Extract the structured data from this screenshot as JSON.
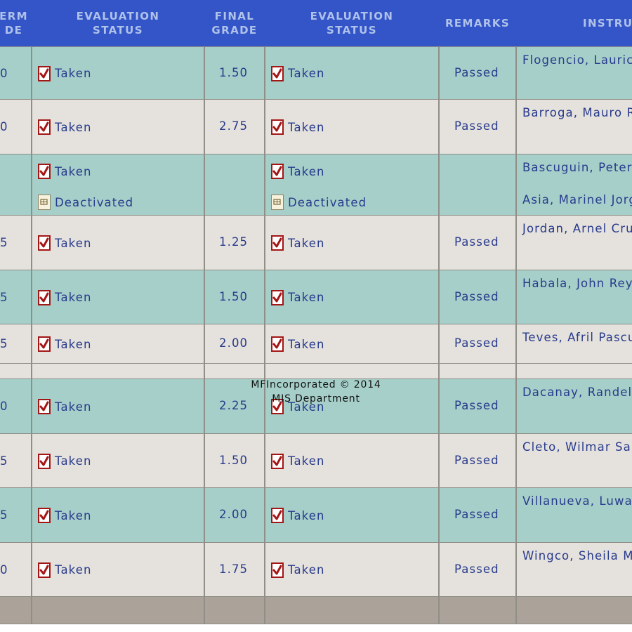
{
  "header": {
    "midterm_grade": "ERM\nDE",
    "evaluation_status_1": "EVALUATION\nSTATUS",
    "final_grade": "FINAL\nGRADE",
    "evaluation_status_2": "EVALUATION\nSTATUS",
    "remarks": "REMARKS",
    "instructor": "INSTRU"
  },
  "colors": {
    "header_bg": "#3355c8",
    "header_text": "#b0c2ea",
    "row_teal": "#a6cfc9",
    "row_gray": "#e5e1dc",
    "footer_bg": "#aba299",
    "text": "#283b8c",
    "check_icon": "#a31616"
  },
  "icons": {
    "taken": "check-document-icon",
    "deactivated": "deactivated-document-icon"
  },
  "rows": [
    {
      "midterm": "0",
      "eval1": "Taken",
      "final": "1.50",
      "eval2": "Taken",
      "remarks": "Passed",
      "instructor": "Flogencio, Lauric"
    },
    {
      "midterm": "0",
      "eval1": "Taken",
      "final": "2.75",
      "eval2": "Taken",
      "remarks": "Passed",
      "instructor": "Barroga, Mauro R"
    },
    {
      "midterm": "",
      "eval1": "Taken",
      "eval1b": "Deactivated",
      "final": "",
      "eval2": "Taken",
      "eval2b": "Deactivated",
      "remarks": "",
      "instructor": "Bascuguin, Peter",
      "instructor_b": "Asia, Marinel Jorg"
    },
    {
      "midterm": "5",
      "eval1": "Taken",
      "final": "1.25",
      "eval2": "Taken",
      "remarks": "Passed",
      "instructor": "Jordan, Arnel Cru"
    },
    {
      "midterm": "5",
      "eval1": "Taken",
      "final": "1.50",
      "eval2": "Taken",
      "remarks": "Passed",
      "instructor": "Habala, John Rey"
    },
    {
      "midterm": "5",
      "eval1": "Taken",
      "final": "2.00",
      "eval2": "Taken",
      "remarks": "Passed",
      "instructor": "Teves, Afril Pascu"
    },
    {
      "midterm": "0",
      "eval1": "Taken",
      "final": "2.25",
      "eval2": "Taken",
      "remarks": "Passed",
      "instructor": "Dacanay, Randel"
    },
    {
      "midterm": "5",
      "eval1": "Taken",
      "final": "1.50",
      "eval2": "Taken",
      "remarks": "Passed",
      "instructor": "Cleto, Wilmar Sa"
    },
    {
      "midterm": "5",
      "eval1": "Taken",
      "final": "2.00",
      "eval2": "Taken",
      "remarks": "Passed",
      "instructor": "Villanueva, Luwal"
    },
    {
      "midterm": "0",
      "eval1": "Taken",
      "final": "1.75",
      "eval2": "Taken",
      "remarks": "Passed",
      "instructor": "Wingco, Sheila M"
    }
  ],
  "footer": {
    "credit_line1": "MFIncorporated © 2014",
    "credit_line2": "MIS Department"
  }
}
